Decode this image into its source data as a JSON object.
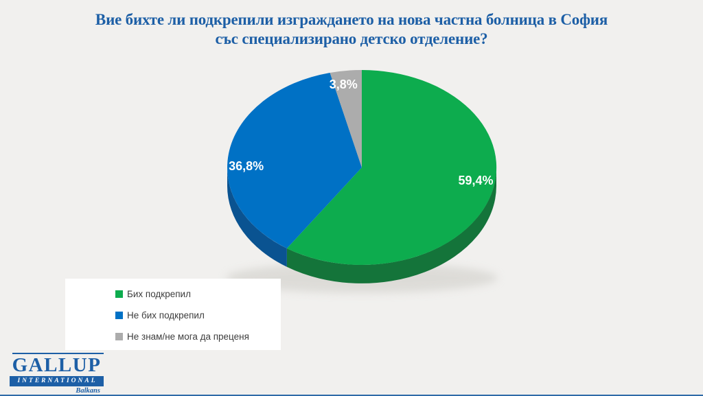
{
  "title": {
    "line1": "Вие бихте ли подкрепили изграждането на нова частна болница в София",
    "line2": "със специализирано детско отделение?"
  },
  "chart_data": {
    "type": "pie",
    "is_3d": true,
    "title": "Вие бихте ли подкрепили изграждането на нова частна болница в София със специализирано детско отделение?",
    "start_angle_deg": 0,
    "direction": "clockwise",
    "legend_position": "bottom-left",
    "data_label_color": "#ffffff",
    "slices": [
      {
        "label": "Бих подкрепил",
        "value": 59.4,
        "display": "59,4%",
        "color": "#0dac4e",
        "side_color": "#14743a"
      },
      {
        "label": "Не бих подкрепил",
        "value": 36.8,
        "display": "36,8%",
        "color": "#0071c5",
        "side_color": "#0a5391"
      },
      {
        "label": "Не знам/не мога да преценя",
        "value": 3.8,
        "display": "3,8%",
        "color": "#acacac",
        "side_color": "#8b8b8b"
      }
    ]
  },
  "branding": {
    "name": "GALLUP",
    "subtitle": "INTERNATIONAL",
    "region": "Balkans"
  },
  "colors": {
    "background": "#f1f0ee",
    "title_text": "#1d5fa6",
    "legend_background": "#ffffff",
    "legend_text": "#3c3c3c",
    "accent_bar": "#2f6ba8"
  }
}
